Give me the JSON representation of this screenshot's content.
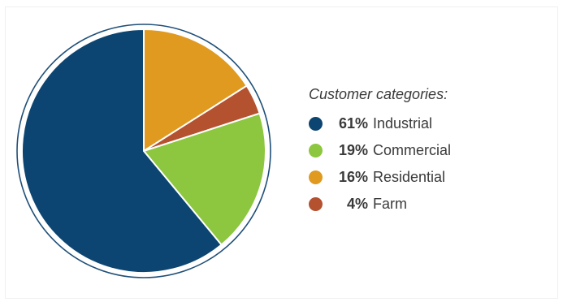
{
  "chart_data": {
    "type": "pie",
    "title": "Customer categories:",
    "categories": [
      "Industrial",
      "Commercial",
      "Residential",
      "Farm"
    ],
    "values": [
      61,
      19,
      16,
      4
    ],
    "labels": [
      "61%",
      "19%",
      "16%",
      "4%"
    ],
    "colors": [
      "#0c4571",
      "#8dc63f",
      "#e09a1f",
      "#b4512f"
    ],
    "legend_position": "right"
  }
}
